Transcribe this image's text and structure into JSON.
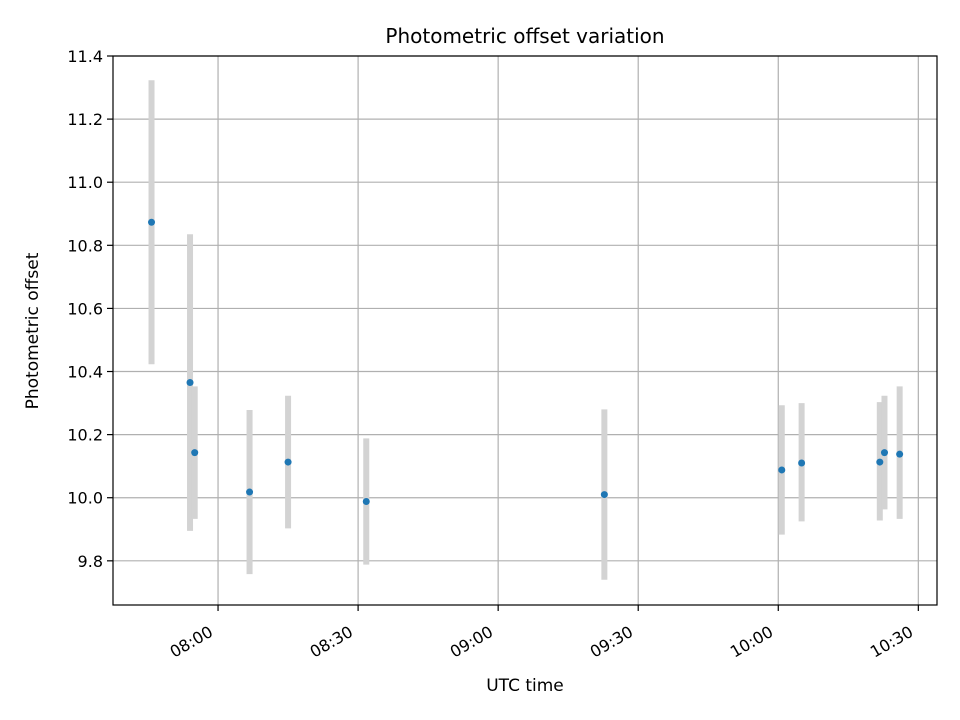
{
  "chart_data": {
    "type": "scatter",
    "title": "Photometric offset variation",
    "xlabel": "UTC time",
    "ylabel": "Photometric offset",
    "x_tick_labels": [
      "08:00",
      "08:30",
      "09:00",
      "09:30",
      "10:00",
      "10:30"
    ],
    "y_tick_labels": [
      "9.8",
      "10.0",
      "10.2",
      "10.4",
      "10.6",
      "10.8",
      "11.0",
      "11.2",
      "11.4"
    ],
    "x_ticks": [
      "08:00",
      "08:30",
      "09:00",
      "09:30",
      "10:00",
      "10:30"
    ],
    "y_ticks": [
      9.8,
      10.0,
      10.2,
      10.4,
      10.6,
      10.8,
      11.0,
      11.2,
      11.4
    ],
    "xlim": [
      "07:37:30",
      "10:34:00"
    ],
    "ylim": [
      9.66,
      11.4
    ],
    "grid": true,
    "marker_color": "#1f77b4",
    "errorbar_color": "#d3d3d3",
    "points": [
      {
        "t": "07:45:45",
        "y": 10.873,
        "ylow": 10.423,
        "yhigh": 11.323
      },
      {
        "t": "07:54:00",
        "y": 10.365,
        "ylow": 9.895,
        "yhigh": 10.835
      },
      {
        "t": "07:55:00",
        "y": 10.143,
        "ylow": 9.933,
        "yhigh": 10.353
      },
      {
        "t": "08:06:45",
        "y": 10.018,
        "ylow": 9.758,
        "yhigh": 10.278
      },
      {
        "t": "08:15:00",
        "y": 10.113,
        "ylow": 9.903,
        "yhigh": 10.323
      },
      {
        "t": "08:31:45",
        "y": 9.988,
        "ylow": 9.788,
        "yhigh": 10.188
      },
      {
        "t": "09:22:45",
        "y": 10.01,
        "ylow": 9.74,
        "yhigh": 10.28
      },
      {
        "t": "10:00:45",
        "y": 10.088,
        "ylow": 9.883,
        "yhigh": 10.293
      },
      {
        "t": "10:05:00",
        "y": 10.11,
        "ylow": 9.925,
        "yhigh": 10.3
      },
      {
        "t": "10:21:45",
        "y": 10.113,
        "ylow": 9.928,
        "yhigh": 10.303
      },
      {
        "t": "10:22:45",
        "y": 10.143,
        "ylow": 9.963,
        "yhigh": 10.323
      },
      {
        "t": "10:26:00",
        "y": 10.138,
        "ylow": 9.933,
        "yhigh": 10.353
      }
    ]
  }
}
